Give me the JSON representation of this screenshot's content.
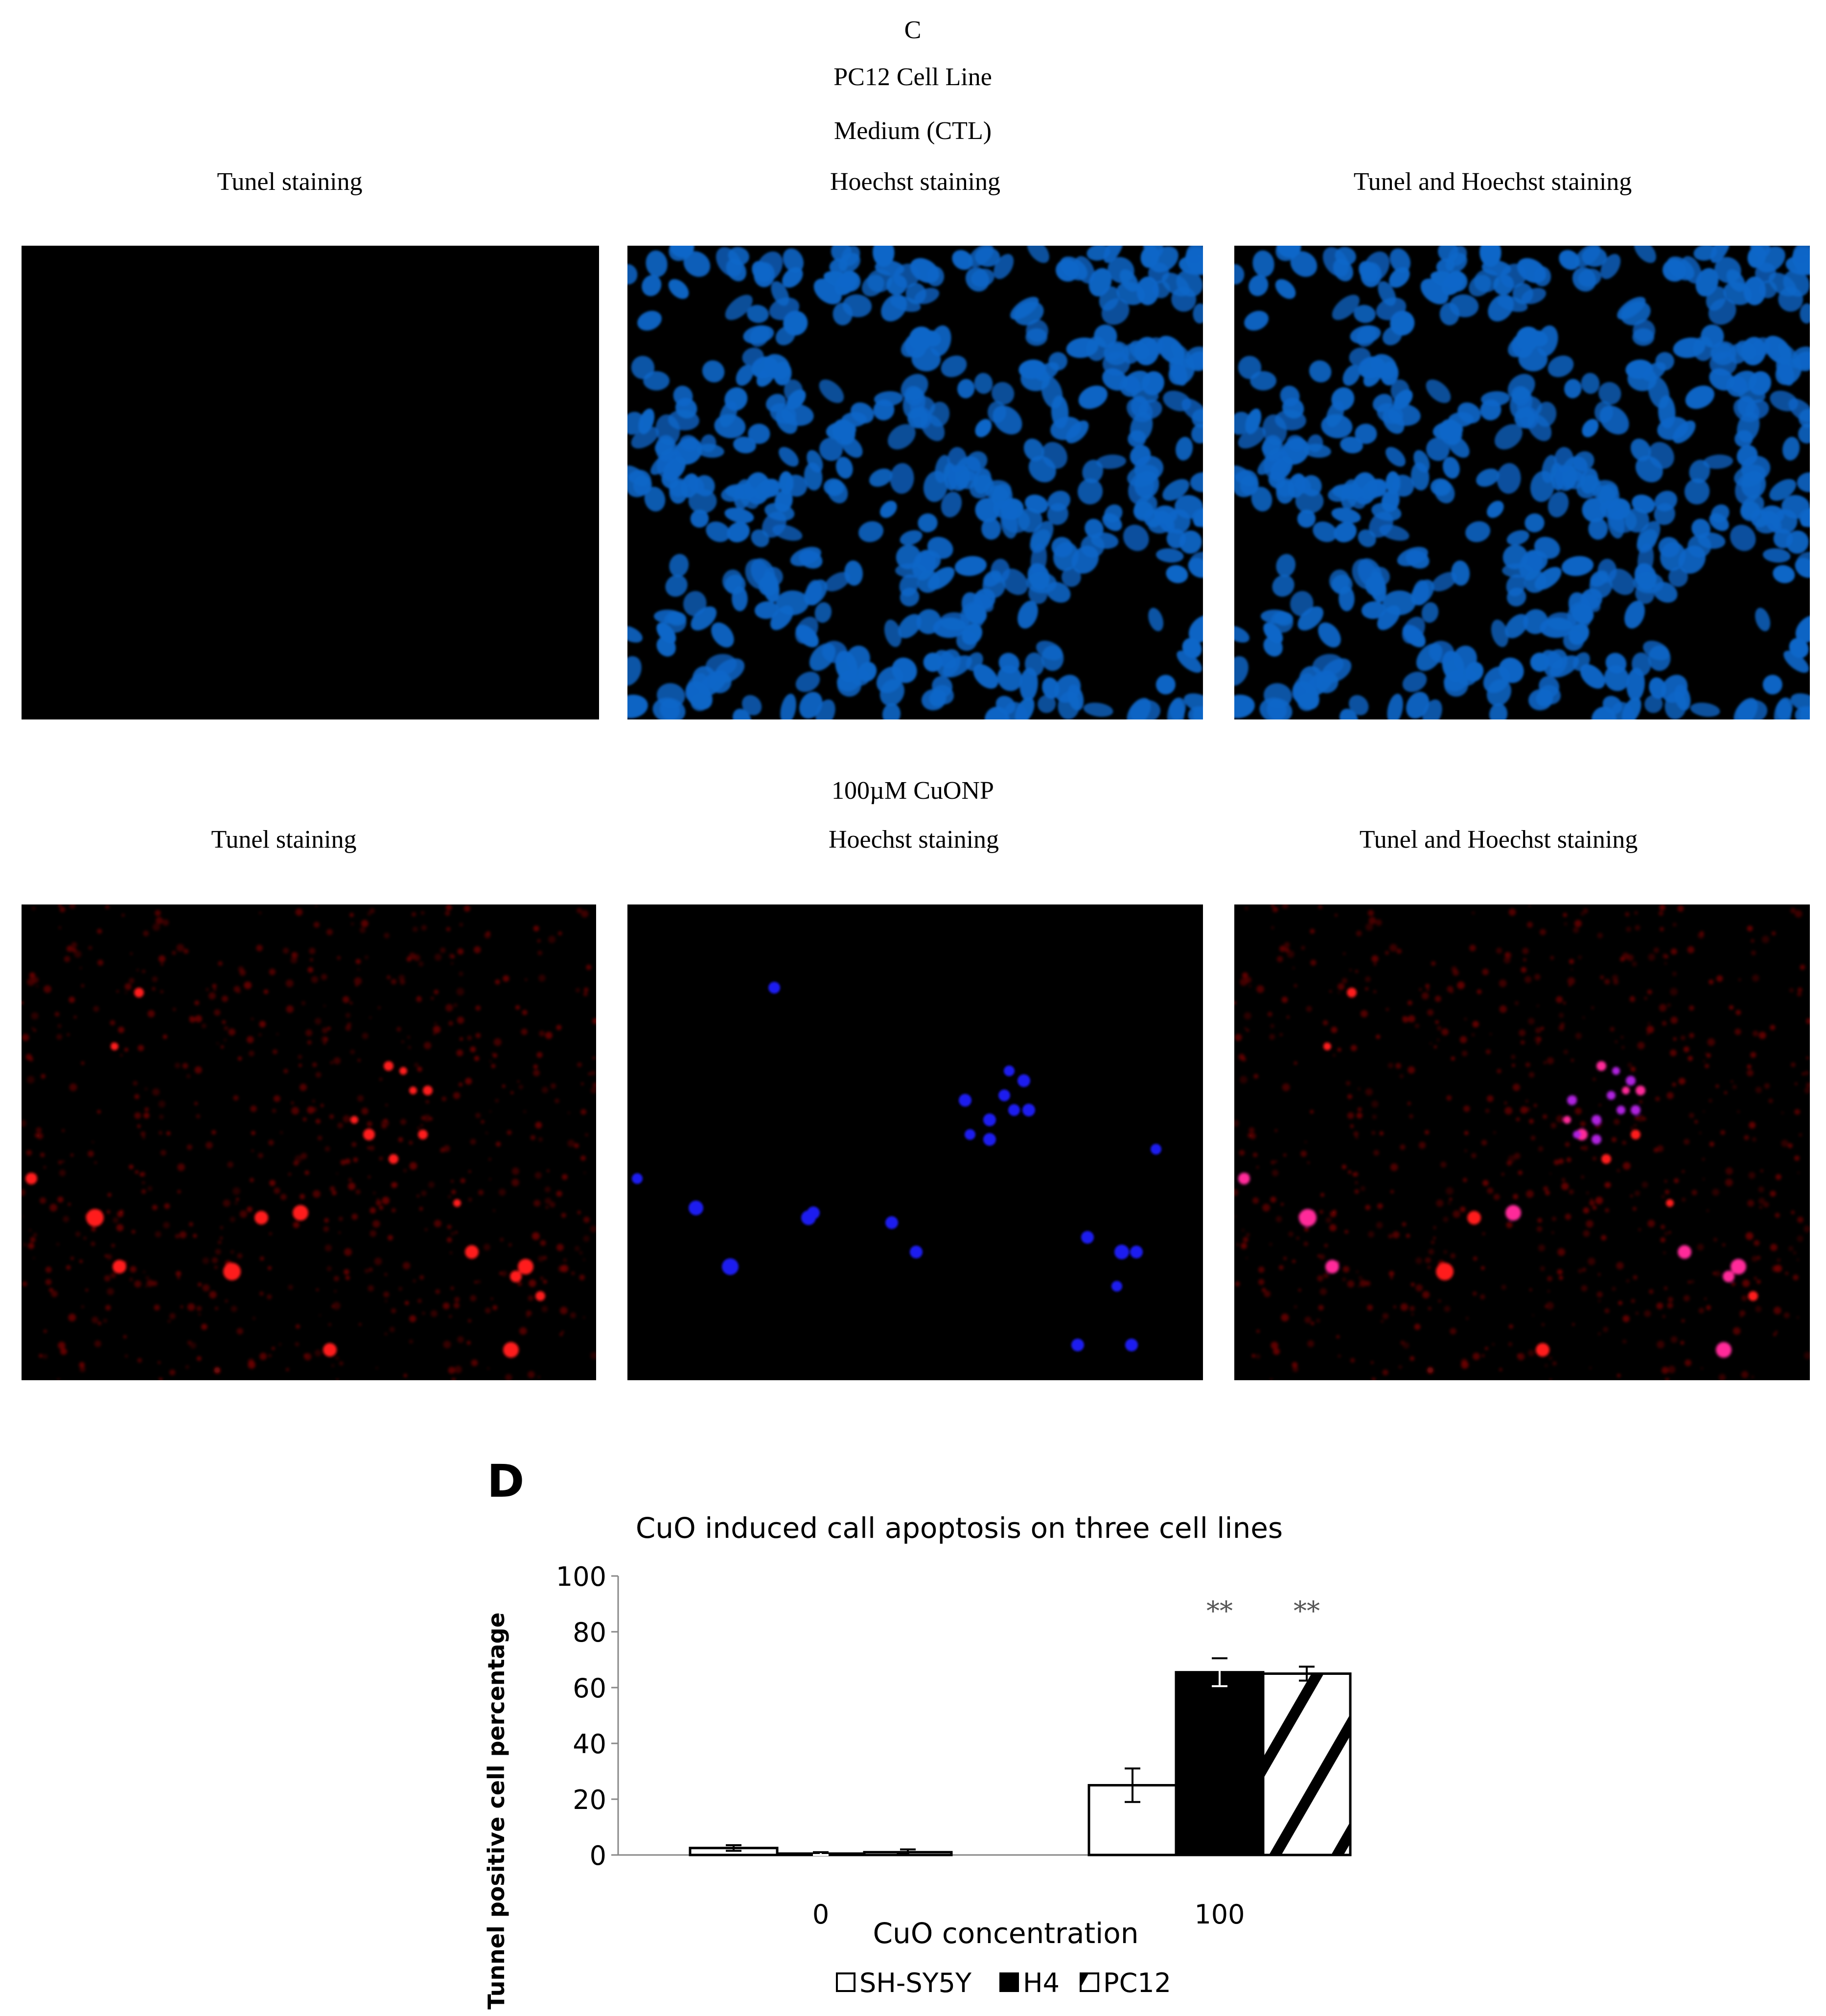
{
  "figure": {
    "panel_c_letter": "C",
    "cell_line": "PC12 Cell Line",
    "section_control": "Medium (CTL)",
    "section_treated": "100µM CuONP",
    "col_tunel": "Tunel staining",
    "col_hoechst": "Hoechst staining",
    "col_merge": "Tunel and Hoechst staining",
    "panel_d_letter": "D"
  },
  "colors": {
    "hoechst_dense": "#0a66c8",
    "tunel_red": "#ff1a1a",
    "hoechst_sparse": "#1c1cf0",
    "merge_magenta": "#ff2a9a"
  },
  "chart_data": {
    "type": "bar",
    "title": "CuO induced call apoptosis on three cell lines",
    "xlabel": "CuO concentration",
    "ylabel": "Tunnel positive cell percentage",
    "categories": [
      "0",
      "100"
    ],
    "ylim": [
      0,
      100
    ],
    "yticks": [
      "0",
      "20",
      "40",
      "60",
      "80",
      "100"
    ],
    "series": [
      {
        "name": "SH-SY5Y",
        "values": [
          2.5,
          25
        ],
        "errors": [
          1,
          6
        ],
        "fill": "white"
      },
      {
        "name": "H4",
        "values": [
          0.5,
          65.5
        ],
        "errors": [
          0.5,
          5
        ],
        "fill": "black"
      },
      {
        "name": "PC12",
        "values": [
          1,
          65
        ],
        "errors": [
          1,
          2.5
        ],
        "fill": "hatch"
      }
    ],
    "annotations": [
      "**",
      "**"
    ],
    "legend_position": "bottom",
    "grid": false
  }
}
